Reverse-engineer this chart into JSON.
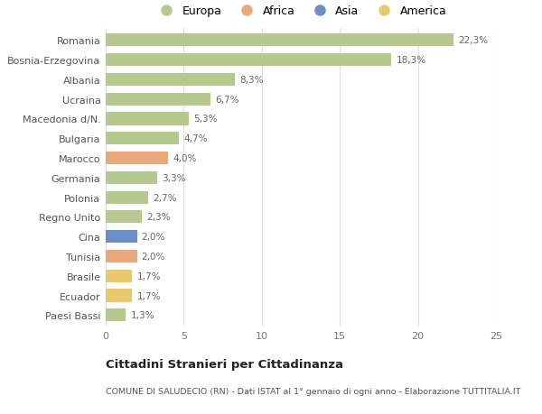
{
  "countries": [
    "Romania",
    "Bosnia-Erzegovina",
    "Albania",
    "Ucraina",
    "Macedonia d/N.",
    "Bulgaria",
    "Marocco",
    "Germania",
    "Polonia",
    "Regno Unito",
    "Cina",
    "Tunisia",
    "Brasile",
    "Ecuador",
    "Paesi Bassi"
  ],
  "values": [
    22.3,
    18.3,
    8.3,
    6.7,
    5.3,
    4.7,
    4.0,
    3.3,
    2.7,
    2.3,
    2.0,
    2.0,
    1.7,
    1.7,
    1.3
  ],
  "labels": [
    "22,3%",
    "18,3%",
    "8,3%",
    "6,7%",
    "5,3%",
    "4,7%",
    "4,0%",
    "3,3%",
    "2,7%",
    "2,3%",
    "2,0%",
    "2,0%",
    "1,7%",
    "1,7%",
    "1,3%"
  ],
  "continents": [
    "Europa",
    "Europa",
    "Europa",
    "Europa",
    "Europa",
    "Europa",
    "Africa",
    "Europa",
    "Europa",
    "Europa",
    "Asia",
    "Africa",
    "America",
    "America",
    "Europa"
  ],
  "colors": {
    "Europa": "#b5c98e",
    "Africa": "#e8a87c",
    "Asia": "#6a8fc8",
    "America": "#e8c96d"
  },
  "xlim": [
    0,
    25
  ],
  "xticks": [
    0,
    5,
    10,
    15,
    20,
    25
  ],
  "title": "Cittadini Stranieri per Cittadinanza",
  "subtitle": "COMUNE DI SALUDECIO (RN) - Dati ISTAT al 1° gennaio di ogni anno - Elaborazione TUTTITALIA.IT",
  "background_color": "#ffffff",
  "grid_color": "#e0e0e0",
  "legend_order": [
    "Europa",
    "Africa",
    "Asia",
    "America"
  ]
}
